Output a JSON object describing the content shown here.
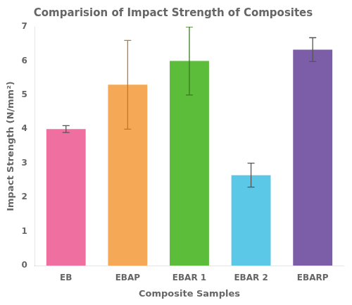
{
  "chart_data": {
    "type": "bar",
    "title": "Comparision of Impact Strength of Composites",
    "xlabel": "Composite Samples",
    "ylabel": "Impact Strength (N/mm²)",
    "categories": [
      "EB",
      "EBAP",
      "EBAR 1",
      "EBAR 2",
      "EBARP"
    ],
    "values": [
      4.0,
      5.3,
      6.0,
      2.65,
      6.33
    ],
    "errors": [
      0.1,
      1.3,
      1.0,
      0.35,
      0.35
    ],
    "colors": [
      "#EE6FA0",
      "#F5A855",
      "#5BBD3A",
      "#5BC8E8",
      "#7B5EA7"
    ],
    "error_colors": [
      "#555555",
      "#C07830",
      "#3A7A20",
      "#555555",
      "#555555"
    ],
    "ylim": [
      0,
      7
    ],
    "yticks": [
      0,
      1,
      2,
      3,
      4,
      5,
      6,
      7
    ],
    "grid": false
  }
}
